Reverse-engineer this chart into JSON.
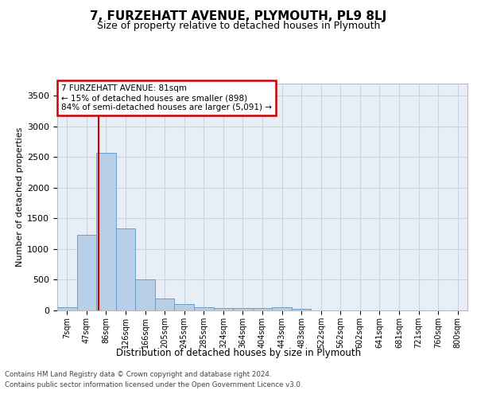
{
  "title": "7, FURZEHATT AVENUE, PLYMOUTH, PL9 8LJ",
  "subtitle": "Size of property relative to detached houses in Plymouth",
  "xlabel": "Distribution of detached houses by size in Plymouth",
  "ylabel": "Number of detached properties",
  "bar_labels": [
    "7sqm",
    "47sqm",
    "86sqm",
    "126sqm",
    "166sqm",
    "205sqm",
    "245sqm",
    "285sqm",
    "324sqm",
    "364sqm",
    "404sqm",
    "443sqm",
    "483sqm",
    "522sqm",
    "562sqm",
    "602sqm",
    "641sqm",
    "681sqm",
    "721sqm",
    "760sqm",
    "800sqm"
  ],
  "bar_values": [
    50,
    1230,
    2570,
    1340,
    500,
    195,
    100,
    50,
    45,
    45,
    45,
    50,
    20,
    5,
    5,
    5,
    5,
    5,
    5,
    5,
    5
  ],
  "bar_color": "#b8cfe8",
  "bar_edge_color": "#6a9fca",
  "grid_color": "#c8d4e4",
  "background_color": "#e8eef6",
  "vline_color": "#cc0000",
  "annotation_text": "7 FURZEHATT AVENUE: 81sqm\n← 15% of detached houses are smaller (898)\n84% of semi-detached houses are larger (5,091) →",
  "annotation_box_color": "#cc0000",
  "footer_line1": "Contains HM Land Registry data © Crown copyright and database right 2024.",
  "footer_line2": "Contains public sector information licensed under the Open Government Licence v3.0.",
  "ylim": [
    0,
    3700
  ],
  "yticks": [
    0,
    500,
    1000,
    1500,
    2000,
    2500,
    3000,
    3500
  ]
}
